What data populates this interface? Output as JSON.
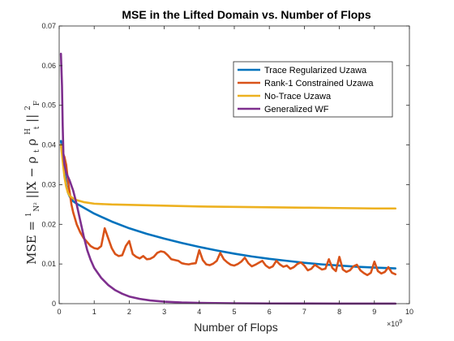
{
  "chart_data": {
    "type": "line",
    "title": "MSE in the Lifted Domain vs. Number of Flops",
    "xlabel": "Number of Flops",
    "ylabel": "MSE = (1/N²) ||X − ρ_t ρ_t^H||²_F",
    "ylabel_parts": {
      "prefix": "MSE = ",
      "frac_num": "1",
      "frac_den": "N²",
      "norm_open": "||X − ρ",
      "sub_t1": "t",
      "rho2": "ρ",
      "sup_H": "H",
      "sub_t2": "t",
      "norm_close": "||",
      "sup_2": "2",
      "sub_F": "F"
    },
    "x_exponent_label": "×10",
    "x_exponent_power": "9",
    "xlim": [
      0,
      10
    ],
    "ylim": [
      0,
      0.07
    ],
    "x_ticks": [
      0,
      1,
      2,
      3,
      4,
      5,
      6,
      7,
      8,
      9,
      10
    ],
    "y_ticks": [
      0,
      0.01,
      0.02,
      0.03,
      0.04,
      0.05,
      0.06,
      0.07
    ],
    "y_tick_labels": [
      "0",
      "0.01",
      "0.02",
      "0.03",
      "0.04",
      "0.05",
      "0.06",
      "0.07"
    ],
    "legend_placement": "upper-right",
    "series": [
      {
        "name": "Trace Regularized Uzawa",
        "color": "#0072BD",
        "x": [
          0.05,
          0.1,
          0.15,
          0.2,
          0.25,
          0.3,
          0.4,
          0.5,
          0.7,
          1.0,
          1.5,
          2.0,
          2.5,
          3.0,
          3.5,
          4.0,
          4.5,
          5.0,
          5.5,
          6.0,
          6.5,
          7.0,
          7.5,
          8.0,
          8.5,
          9.0,
          9.6
        ],
        "y": [
          0.041,
          0.038,
          0.034,
          0.03,
          0.028,
          0.027,
          0.0258,
          0.0252,
          0.0242,
          0.0227,
          0.0207,
          0.019,
          0.0176,
          0.0164,
          0.0153,
          0.0143,
          0.0134,
          0.0126,
          0.0119,
          0.0113,
          0.0108,
          0.0103,
          0.0099,
          0.0096,
          0.0093,
          0.0091,
          0.0089
        ]
      },
      {
        "name": "Rank-1 Constrained Uzawa",
        "color": "#D95319",
        "x": [
          0.05,
          0.1,
          0.15,
          0.2,
          0.25,
          0.3,
          0.35,
          0.4,
          0.5,
          0.6,
          0.7,
          0.8,
          0.9,
          1.0,
          1.1,
          1.2,
          1.3,
          1.4,
          1.5,
          1.6,
          1.7,
          1.8,
          1.9,
          2.0,
          2.1,
          2.2,
          2.3,
          2.4,
          2.5,
          2.6,
          2.7,
          2.8,
          2.9,
          3.0,
          3.1,
          3.2,
          3.3,
          3.4,
          3.5,
          3.6,
          3.7,
          3.8,
          3.9,
          4.0,
          4.1,
          4.2,
          4.3,
          4.4,
          4.5,
          4.6,
          4.7,
          4.8,
          4.9,
          5.0,
          5.1,
          5.2,
          5.3,
          5.4,
          5.5,
          5.6,
          5.7,
          5.8,
          5.9,
          6.0,
          6.1,
          6.2,
          6.3,
          6.4,
          6.5,
          6.6,
          6.7,
          6.8,
          6.9,
          7.0,
          7.1,
          7.2,
          7.3,
          7.4,
          7.5,
          7.6,
          7.7,
          7.8,
          7.9,
          8.0,
          8.1,
          8.2,
          8.3,
          8.4,
          8.5,
          8.6,
          8.7,
          8.8,
          8.9,
          9.0,
          9.1,
          9.2,
          9.3,
          9.4,
          9.5,
          9.6
        ],
        "y": [
          0.04,
          0.038,
          0.037,
          0.035,
          0.031,
          0.028,
          0.025,
          0.023,
          0.02,
          0.018,
          0.0165,
          0.0155,
          0.0145,
          0.014,
          0.0138,
          0.0145,
          0.019,
          0.0165,
          0.014,
          0.0125,
          0.012,
          0.0122,
          0.0145,
          0.0158,
          0.0125,
          0.0118,
          0.0114,
          0.012,
          0.0112,
          0.0113,
          0.0118,
          0.0128,
          0.0132,
          0.013,
          0.0122,
          0.0112,
          0.011,
          0.0108,
          0.0102,
          0.01,
          0.0099,
          0.0101,
          0.0102,
          0.0135,
          0.011,
          0.0099,
          0.0097,
          0.0101,
          0.0108,
          0.0128,
          0.0112,
          0.0104,
          0.0098,
          0.0096,
          0.01,
          0.0106,
          0.0116,
          0.0102,
          0.0094,
          0.0098,
          0.0103,
          0.0108,
          0.0096,
          0.009,
          0.0094,
          0.0108,
          0.0099,
          0.0093,
          0.0096,
          0.0088,
          0.0092,
          0.01,
          0.0104,
          0.0096,
          0.0084,
          0.0088,
          0.0098,
          0.0092,
          0.0086,
          0.0088,
          0.0112,
          0.009,
          0.0082,
          0.0118,
          0.0086,
          0.008,
          0.0084,
          0.0094,
          0.0098,
          0.0084,
          0.0077,
          0.0072,
          0.0078,
          0.0106,
          0.0082,
          0.0076,
          0.008,
          0.0092,
          0.0078,
          0.0074
        ]
      },
      {
        "name": "No-Trace Uzawa",
        "color": "#EDB120",
        "x": [
          0.05,
          0.1,
          0.15,
          0.2,
          0.25,
          0.3,
          0.4,
          0.5,
          0.7,
          1.0,
          1.5,
          2.0,
          2.5,
          3.0,
          3.5,
          4.0,
          5.0,
          6.0,
          7.0,
          8.0,
          9.0,
          9.6
        ],
        "y": [
          0.04,
          0.036,
          0.032,
          0.0295,
          0.028,
          0.0272,
          0.0265,
          0.0261,
          0.0256,
          0.0252,
          0.025,
          0.0249,
          0.0248,
          0.0247,
          0.0246,
          0.0245,
          0.0244,
          0.0243,
          0.0242,
          0.0241,
          0.024,
          0.024
        ]
      },
      {
        "name": "Generalized WF",
        "color": "#7E2F8E",
        "x": [
          0.05,
          0.08,
          0.1,
          0.12,
          0.15,
          0.2,
          0.25,
          0.3,
          0.4,
          0.5,
          0.6,
          0.7,
          0.8,
          0.9,
          1.0,
          1.2,
          1.4,
          1.6,
          1.8,
          2.0,
          2.3,
          2.6,
          3.0,
          3.5,
          4.0,
          5.0,
          6.0,
          7.0,
          8.0,
          9.0,
          9.6
        ],
        "y": [
          0.063,
          0.055,
          0.045,
          0.038,
          0.035,
          0.033,
          0.032,
          0.031,
          0.0285,
          0.025,
          0.021,
          0.017,
          0.0135,
          0.011,
          0.009,
          0.0065,
          0.0047,
          0.0034,
          0.0025,
          0.0018,
          0.0012,
          0.0008,
          0.0005,
          0.0003,
          0.0002,
          0.0001,
          5e-05,
          3e-05,
          2e-05,
          1e-05,
          1e-05
        ]
      }
    ]
  }
}
